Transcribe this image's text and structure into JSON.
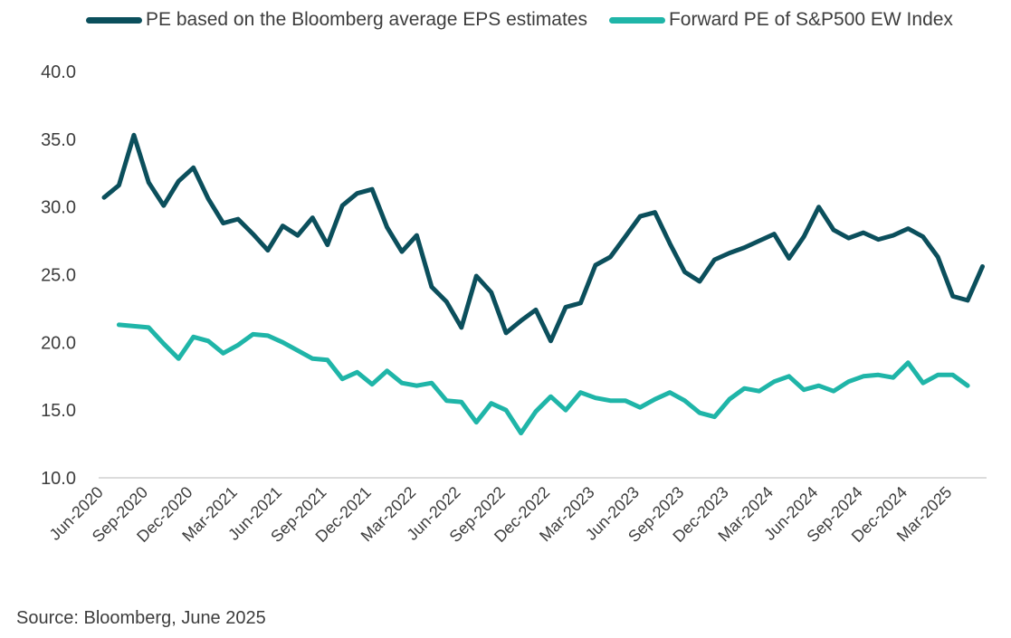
{
  "chart_data": {
    "type": "line",
    "title": "",
    "xlabel": "",
    "ylabel": "",
    "ylim": [
      10,
      40
    ],
    "yticks": [
      "10.0",
      "15.0",
      "20.0",
      "25.0",
      "30.0",
      "35.0",
      "40.0"
    ],
    "grid": false,
    "legend": "top",
    "x_tick_labels": [
      "Jun-2020",
      "Sep-2020",
      "Dec-2020",
      "Mar-2021",
      "Jun-2021",
      "Sep-2021",
      "Dec-2021",
      "Mar-2022",
      "Jun-2022",
      "Sep-2022",
      "Dec-2022",
      "Mar-2023",
      "Jun-2023",
      "Sep-2023",
      "Dec-2023",
      "Mar-2024",
      "Jun-2024",
      "Sep-2024",
      "Dec-2024",
      "Mar-2025"
    ],
    "x_tick_every": 3,
    "series": [
      {
        "name": "PE based on the Bloomberg average EPS estimates",
        "color": "#0b4f5c",
        "start_index": 0,
        "values": [
          30.7,
          31.6,
          35.3,
          31.8,
          30.1,
          31.9,
          32.9,
          30.6,
          28.8,
          29.1,
          28.0,
          26.8,
          28.6,
          27.9,
          29.2,
          27.2,
          30.1,
          31.0,
          31.3,
          28.5,
          26.7,
          27.9,
          24.1,
          23.0,
          21.1,
          24.9,
          23.7,
          20.7,
          21.6,
          22.4,
          20.1,
          22.6,
          22.9,
          25.7,
          26.3,
          27.8,
          29.3,
          29.6,
          27.3,
          25.2,
          24.5,
          26.1,
          26.6,
          27.0,
          27.5,
          28.0,
          26.2,
          27.8,
          30.0,
          28.3,
          27.7,
          28.1,
          27.6,
          27.9,
          28.4,
          27.8,
          26.3,
          23.4,
          23.1,
          25.6
        ]
      },
      {
        "name": "Forward PE of S&P500 EW Index",
        "color": "#1fb5a8",
        "start_index": 1,
        "values": [
          21.3,
          21.2,
          21.1,
          19.9,
          18.8,
          20.4,
          20.1,
          19.2,
          19.8,
          20.6,
          20.5,
          20.0,
          19.4,
          18.8,
          18.7,
          17.3,
          17.8,
          16.9,
          17.9,
          17.0,
          16.8,
          17.0,
          15.7,
          15.6,
          14.1,
          15.5,
          15.0,
          13.3,
          14.9,
          16.0,
          15.0,
          16.3,
          15.9,
          15.7,
          15.7,
          15.2,
          15.8,
          16.3,
          15.7,
          14.8,
          14.5,
          15.8,
          16.6,
          16.4,
          17.1,
          17.5,
          16.5,
          16.8,
          16.4,
          17.1,
          17.5,
          17.6,
          17.4,
          18.5,
          17.0,
          17.6,
          17.6,
          16.8
        ]
      }
    ],
    "source": "Source: Bloomberg, June 2025"
  }
}
